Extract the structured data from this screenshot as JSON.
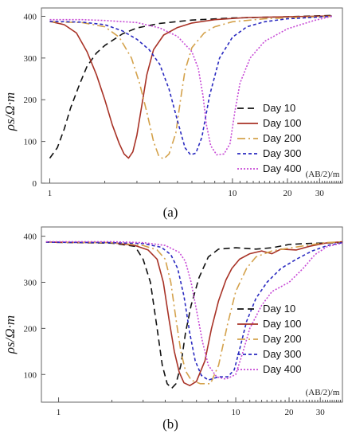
{
  "chart_data": [
    {
      "type": "line",
      "panel_label": "(a)",
      "xscale": "log",
      "xlabel": "(AB/2)/m",
      "ylabel": "ρs/Ω·m",
      "xlim": [
        0.9,
        40
      ],
      "ylim": [
        0,
        420
      ],
      "x_ticks": [
        1,
        10,
        20,
        30
      ],
      "y_ticks": [
        0,
        100,
        200,
        300,
        400
      ],
      "legend_position": "right",
      "series": [
        {
          "name": "Day 10",
          "color": "#111111",
          "dash": "8,5",
          "width": 1.6,
          "points": [
            [
              1,
              60
            ],
            [
              1.1,
              85
            ],
            [
              1.2,
              130
            ],
            [
              1.3,
              180
            ],
            [
              1.45,
              235
            ],
            [
              1.6,
              280
            ],
            [
              1.8,
              312
            ],
            [
              2.0,
              330
            ],
            [
              2.5,
              358
            ],
            [
              3.0,
              372
            ],
            [
              4,
              383
            ],
            [
              6,
              391
            ],
            [
              10,
              396
            ],
            [
              20,
              399
            ],
            [
              35,
              402
            ]
          ]
        },
        {
          "name": "Day 100",
          "color": "#a83226",
          "dash": "",
          "width": 1.6,
          "points": [
            [
              1,
              388
            ],
            [
              1.2,
              380
            ],
            [
              1.4,
              360
            ],
            [
              1.6,
              315
            ],
            [
              1.8,
              260
            ],
            [
              2.0,
              200
            ],
            [
              2.2,
              140
            ],
            [
              2.4,
              95
            ],
            [
              2.55,
              70
            ],
            [
              2.7,
              60
            ],
            [
              2.85,
              75
            ],
            [
              3.0,
              115
            ],
            [
              3.2,
              190
            ],
            [
              3.4,
              260
            ],
            [
              3.7,
              320
            ],
            [
              4.2,
              355
            ],
            [
              5,
              373
            ],
            [
              6,
              384
            ],
            [
              8,
              392
            ],
            [
              12,
              397
            ],
            [
              20,
              399
            ],
            [
              35,
              401
            ]
          ]
        },
        {
          "name": "Day 200",
          "color": "#d4a24c",
          "dash": "10,4,2,4",
          "width": 1.6,
          "points": [
            [
              1,
              387
            ],
            [
              1.5,
              385
            ],
            [
              2.0,
              375
            ],
            [
              2.4,
              350
            ],
            [
              2.8,
              300
            ],
            [
              3.1,
              240
            ],
            [
              3.4,
              170
            ],
            [
              3.7,
              100
            ],
            [
              3.95,
              65
            ],
            [
              4.2,
              58
            ],
            [
              4.5,
              70
            ],
            [
              4.9,
              120
            ],
            [
              5.2,
              200
            ],
            [
              5.5,
              270
            ],
            [
              6,
              325
            ],
            [
              7,
              360
            ],
            [
              8,
              375
            ],
            [
              10,
              387
            ],
            [
              15,
              394
            ],
            [
              25,
              398
            ],
            [
              35,
              400
            ]
          ]
        },
        {
          "name": "Day 300",
          "color": "#2a2ac0",
          "dash": "4,3",
          "width": 1.6,
          "points": [
            [
              1,
              388
            ],
            [
              1.5,
              386
            ],
            [
              2,
              380
            ],
            [
              2.5,
              365
            ],
            [
              3,
              345
            ],
            [
              3.5,
              320
            ],
            [
              4,
              285
            ],
            [
              4.5,
              225
            ],
            [
              5,
              150
            ],
            [
              5.5,
              85
            ],
            [
              5.9,
              68
            ],
            [
              6.3,
              72
            ],
            [
              6.8,
              110
            ],
            [
              7.5,
              210
            ],
            [
              8.5,
              300
            ],
            [
              10,
              350
            ],
            [
              12,
              375
            ],
            [
              15,
              387
            ],
            [
              20,
              394
            ],
            [
              35,
              400
            ]
          ]
        },
        {
          "name": "Day 400",
          "color": "#c74ad6",
          "dash": "2,2",
          "width": 1.6,
          "points": [
            [
              1,
              392
            ],
            [
              1.5,
              392
            ],
            [
              2,
              390
            ],
            [
              3,
              385
            ],
            [
              4,
              372
            ],
            [
              5,
              352
            ],
            [
              6,
              315
            ],
            [
              6.5,
              275
            ],
            [
              6.9,
              210
            ],
            [
              7.2,
              140
            ],
            [
              7.6,
              90
            ],
            [
              8.2,
              68
            ],
            [
              9.0,
              70
            ],
            [
              9.7,
              95
            ],
            [
              10.3,
              170
            ],
            [
              11,
              240
            ],
            [
              12.5,
              300
            ],
            [
              15,
              340
            ],
            [
              20,
              370
            ],
            [
              28,
              390
            ],
            [
              35,
              400
            ]
          ]
        }
      ]
    },
    {
      "type": "line",
      "panel_label": "(b)",
      "xscale": "log",
      "xlabel": "(AB/2)/m",
      "ylabel": "ρs/Ω·m",
      "xlim": [
        0.8,
        40
      ],
      "ylim": [
        40,
        420
      ],
      "x_ticks": [
        1,
        10,
        20,
        30
      ],
      "y_ticks": [
        100,
        200,
        300,
        400
      ],
      "legend_position": "right",
      "series": [
        {
          "name": "Day 10",
          "color": "#111111",
          "dash": "8,5",
          "width": 1.6,
          "points": [
            [
              0.85,
              387
            ],
            [
              2,
              385
            ],
            [
              2.7,
              378
            ],
            [
              3.0,
              350
            ],
            [
              3.3,
              300
            ],
            [
              3.6,
              200
            ],
            [
              3.85,
              120
            ],
            [
              4.1,
              80
            ],
            [
              4.35,
              70
            ],
            [
              4.6,
              80
            ],
            [
              4.9,
              120
            ],
            [
              5.2,
              190
            ],
            [
              5.6,
              250
            ],
            [
              6.2,
              310
            ],
            [
              7,
              355
            ],
            [
              8,
              372
            ],
            [
              10,
              375
            ],
            [
              13,
              372
            ],
            [
              16,
              375
            ],
            [
              20,
              382
            ],
            [
              25,
              384
            ],
            [
              30,
              385
            ],
            [
              40,
              386
            ]
          ]
        },
        {
          "name": "Day 100",
          "color": "#a83226",
          "dash": "",
          "width": 1.6,
          "points": [
            [
              0.85,
              387
            ],
            [
              2,
              386
            ],
            [
              2.7,
              380
            ],
            [
              3.2,
              370
            ],
            [
              3.6,
              350
            ],
            [
              3.9,
              300
            ],
            [
              4.2,
              220
            ],
            [
              4.5,
              150
            ],
            [
              4.8,
              105
            ],
            [
              5.1,
              82
            ],
            [
              5.5,
              76
            ],
            [
              6,
              85
            ],
            [
              6.7,
              130
            ],
            [
              7.3,
              200
            ],
            [
              8,
              260
            ],
            [
              8.8,
              305
            ],
            [
              9.5,
              330
            ],
            [
              10.5,
              350
            ],
            [
              12,
              362
            ],
            [
              14,
              368
            ],
            [
              16,
              362
            ],
            [
              18,
              372
            ],
            [
              22,
              370
            ],
            [
              26,
              378
            ],
            [
              32,
              385
            ],
            [
              40,
              388
            ]
          ]
        },
        {
          "name": "Day 200",
          "color": "#d4a24c",
          "dash": "10,4,2,4",
          "width": 1.6,
          "points": [
            [
              0.85,
              387
            ],
            [
              2,
              386
            ],
            [
              3,
              380
            ],
            [
              3.6,
              370
            ],
            [
              4,
              350
            ],
            [
              4.3,
              300
            ],
            [
              4.6,
              220
            ],
            [
              4.9,
              150
            ],
            [
              5.2,
              108
            ],
            [
              5.6,
              88
            ],
            [
              6.3,
              80
            ],
            [
              7.2,
              80
            ],
            [
              8,
              120
            ],
            [
              9,
              210
            ],
            [
              10,
              280
            ],
            [
              11.5,
              330
            ],
            [
              13,
              355
            ],
            [
              16,
              368
            ],
            [
              20,
              374
            ],
            [
              25,
              380
            ],
            [
              32,
              386
            ],
            [
              40,
              388
            ]
          ]
        },
        {
          "name": "Day 300",
          "color": "#2a2ac0",
          "dash": "4,3",
          "width": 1.6,
          "points": [
            [
              0.85,
              387
            ],
            [
              2,
              386
            ],
            [
              3,
              384
            ],
            [
              3.8,
              376
            ],
            [
              4.3,
              360
            ],
            [
              4.7,
              330
            ],
            [
              5.1,
              270
            ],
            [
              5.5,
              190
            ],
            [
              5.9,
              130
            ],
            [
              6.4,
              98
            ],
            [
              7.0,
              88
            ],
            [
              8,
              95
            ],
            [
              9,
              95
            ],
            [
              9.8,
              110
            ],
            [
              10.6,
              160
            ],
            [
              11.5,
              215
            ],
            [
              13,
              265
            ],
            [
              15,
              300
            ],
            [
              18,
              330
            ],
            [
              22,
              350
            ],
            [
              27,
              368
            ],
            [
              33,
              380
            ],
            [
              40,
              386
            ]
          ]
        },
        {
          "name": "Day 400",
          "color": "#c74ad6",
          "dash": "2,2",
          "width": 1.6,
          "points": [
            [
              0.85,
              388
            ],
            [
              2,
              388
            ],
            [
              3,
              386
            ],
            [
              4,
              380
            ],
            [
              4.8,
              365
            ],
            [
              5.2,
              345
            ],
            [
              5.6,
              300
            ],
            [
              6,
              240
            ],
            [
              6.5,
              170
            ],
            [
              7,
              120
            ],
            [
              7.8,
              95
            ],
            [
              8.8,
              90
            ],
            [
              10,
              100
            ],
            [
              11,
              150
            ],
            [
              12,
              200
            ],
            [
              14,
              250
            ],
            [
              16,
              280
            ],
            [
              20,
              300
            ],
            [
              24,
              330
            ],
            [
              28,
              360
            ],
            [
              33,
              378
            ],
            [
              40,
              385
            ]
          ]
        }
      ]
    }
  ]
}
